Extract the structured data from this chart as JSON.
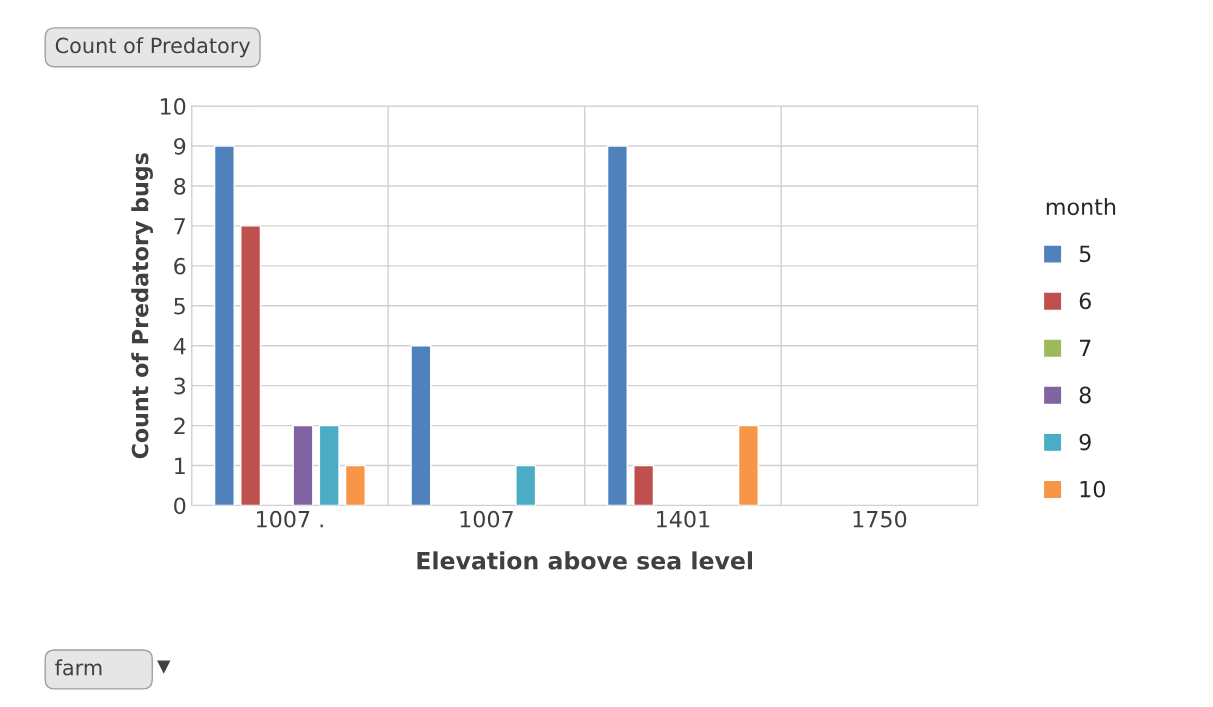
{
  "chart_data": {
    "type": "bar",
    "title": "Count of Predatory",
    "xlabel": "Elevation above sea level",
    "ylabel": "Count of Predatory bugs",
    "legend_title": "month",
    "categories": [
      "1007 .",
      "1007",
      "1401",
      "1750"
    ],
    "series": [
      {
        "name": "5",
        "color": "#4f81bd",
        "values": [
          9,
          4,
          9,
          null
        ]
      },
      {
        "name": "6",
        "color": "#c0504d",
        "values": [
          7,
          null,
          1,
          null
        ]
      },
      {
        "name": "7",
        "color": "#9bbb59",
        "values": [
          null,
          null,
          null,
          null
        ]
      },
      {
        "name": "8",
        "color": "#8064a2",
        "values": [
          2,
          null,
          null,
          null
        ]
      },
      {
        "name": "9",
        "color": "#4bacc6",
        "values": [
          2,
          1,
          null,
          null
        ]
      },
      {
        "name": "10",
        "color": "#f79646",
        "values": [
          1,
          null,
          2,
          null
        ]
      }
    ],
    "ylim": [
      0,
      10
    ],
    "yticks": [
      0,
      1,
      2,
      3,
      4,
      5,
      6,
      7,
      8,
      9,
      10
    ],
    "grid": true,
    "legend": "right",
    "annotations": [
      "farm"
    ]
  }
}
